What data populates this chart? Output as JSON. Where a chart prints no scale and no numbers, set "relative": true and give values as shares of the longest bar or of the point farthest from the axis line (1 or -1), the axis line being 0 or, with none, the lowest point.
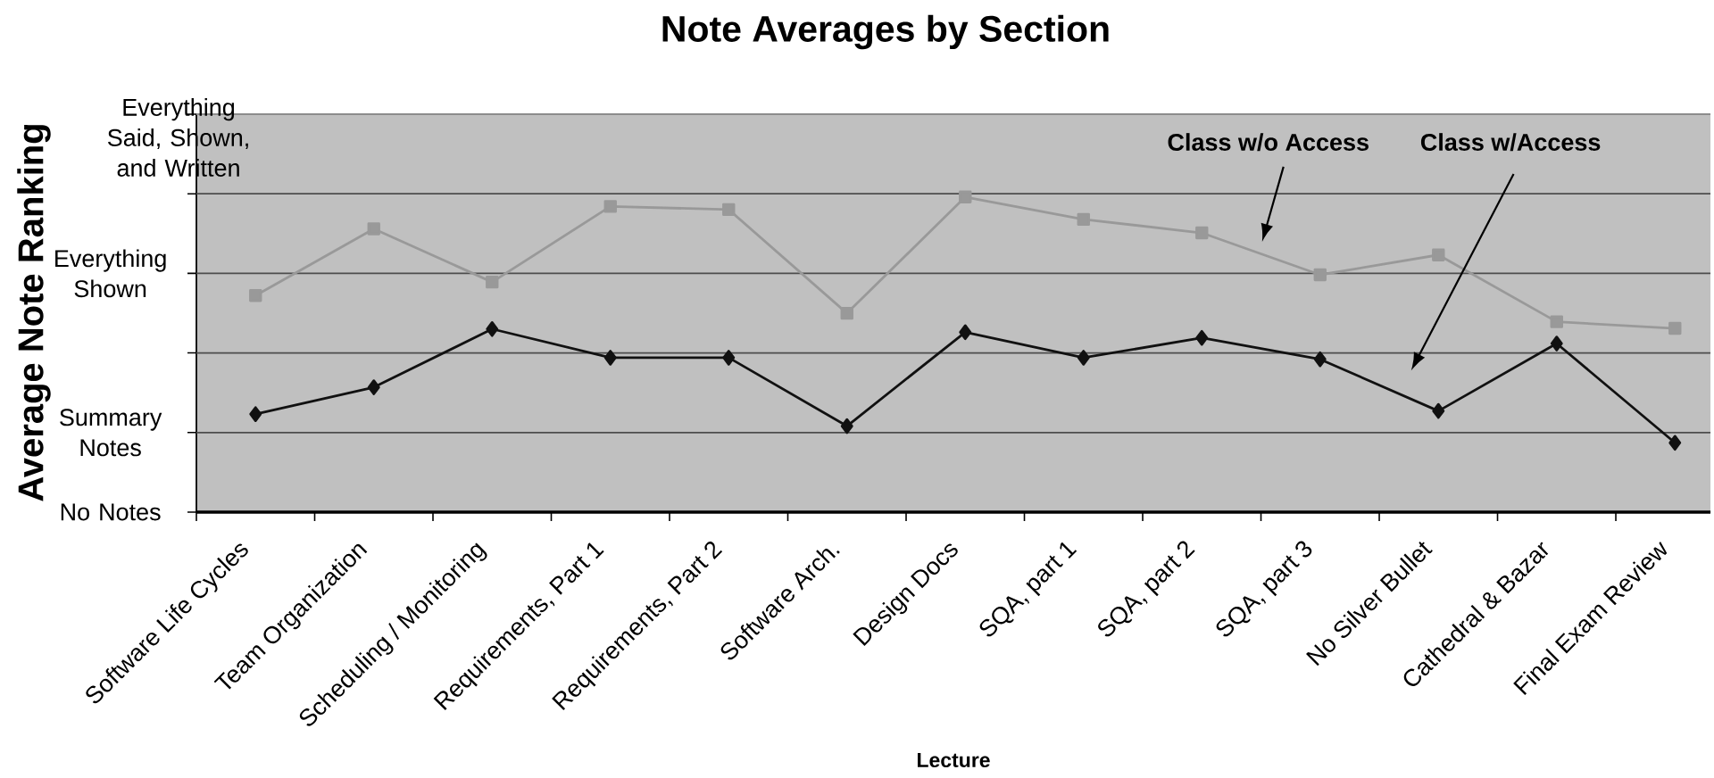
{
  "chart_data": {
    "type": "line",
    "title": "Note Averages by Section",
    "xlabel": "Lecture",
    "ylabel": "Average Note Ranking",
    "relative": true,
    "categories": [
      "Software Life Cycles",
      "Team Organization",
      "Scheduling / Monitoring",
      "Requirements, Part 1",
      "Requirements, Part 2",
      "Software Arch.",
      "Design Docs",
      "SQA, part 1",
      "SQA, part 2",
      "SQA, part 3",
      "No Silver Bullet",
      "Cathedral & Bazar",
      "Final Exam Review"
    ],
    "series": [
      {
        "name": "Class w/o Access",
        "color": "#999999",
        "marker": "square",
        "values": [
          0.687,
          0.899,
          0.73,
          0.97,
          0.96,
          0.631,
          1,
          0.929,
          0.886,
          0.753,
          0.816,
          0.604,
          0.583
        ]
      },
      {
        "name": "Class w/Access",
        "color": "#111111",
        "marker": "diamond",
        "values": [
          0.311,
          0.396,
          0.581,
          0.49,
          0.49,
          0.273,
          0.571,
          0.49,
          0.553,
          0.485,
          0.321,
          0.535,
          0.22
        ]
      }
    ],
    "ref_lines": [
      {
        "axis": "y",
        "value": 0,
        "label": "No Notes",
        "color": "#000000"
      },
      {
        "axis": "y",
        "value": 0.2525,
        "label": "Summary Notes",
        "color": "#4d4d4d"
      },
      {
        "axis": "y",
        "value": 0.5051,
        "color": "#4d4d4d"
      },
      {
        "axis": "y",
        "value": 0.7576,
        "label": "Everything Shown",
        "color": "#4d4d4d"
      },
      {
        "axis": "y",
        "value": 1.0101,
        "color": "#4d4d4d"
      },
      {
        "axis": "y",
        "value": 1.2626,
        "label": "Everything Said, Shown, and Written",
        "color": "#8c8c8c"
      }
    ]
  }
}
